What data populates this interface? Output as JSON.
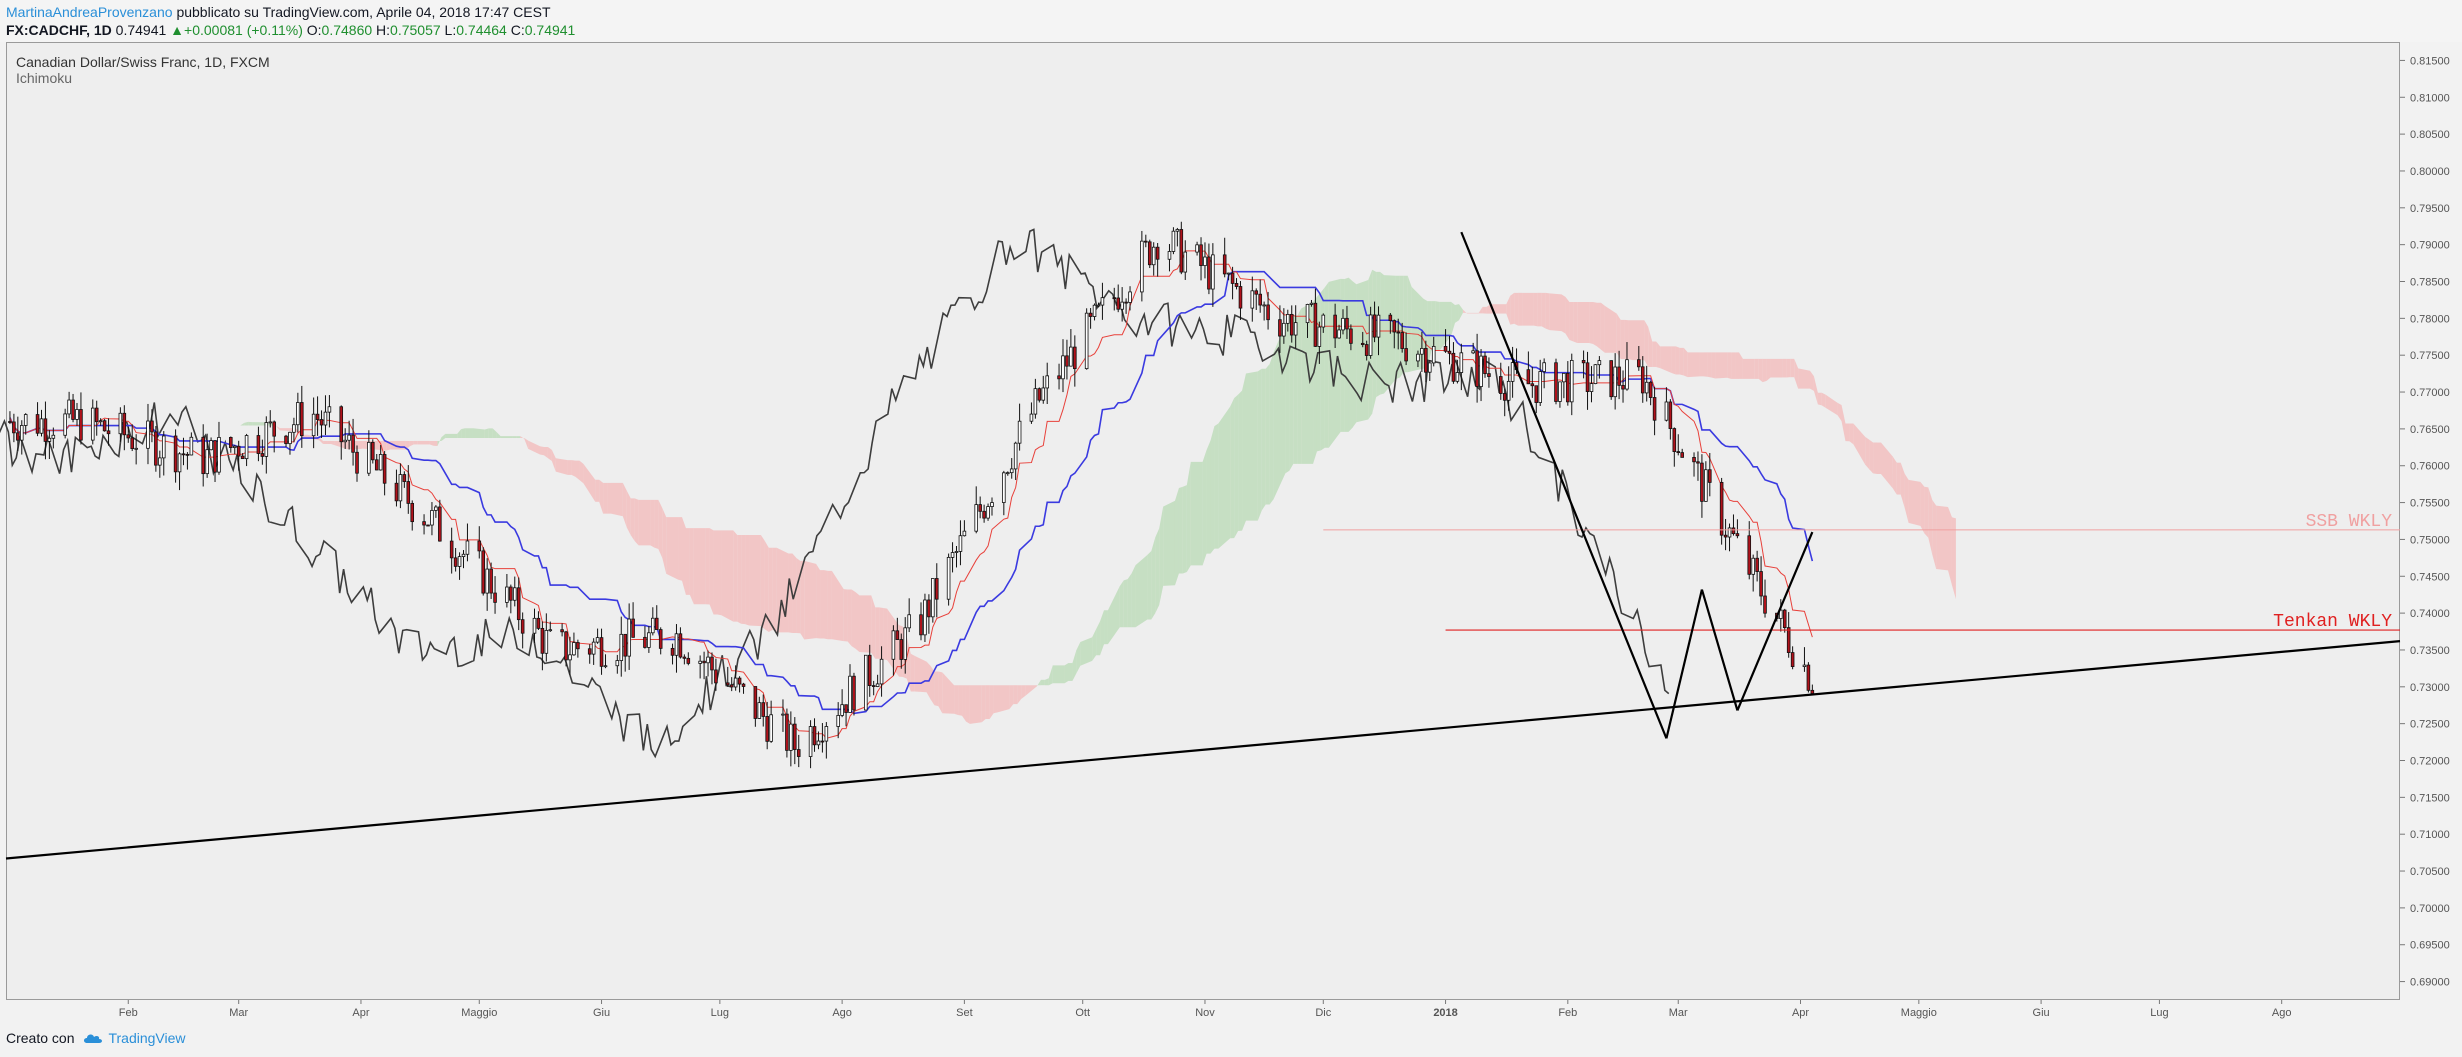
{
  "header": {
    "author": "MartinaAndreaProvenzano",
    "published": "pubblicato su TradingView.com, Aprile 04, 2018 17:47 CEST",
    "symbol": "FX:CADCHF, 1D",
    "last": "0.74941",
    "change": "+0.00081 (+0.11%)",
    "o_label": "O:",
    "o_value": "0.74860",
    "h_label": "H:",
    "h_value": "0.75057",
    "l_label": "L:",
    "l_value": "0.74464",
    "c_label": "C:",
    "c_value": "0.74941"
  },
  "legend": {
    "title": "Canadian Dollar/Swiss Franc, 1D, FXCM",
    "indicator": "Ichimoku"
  },
  "footer": {
    "created_with": "Creato con",
    "brand": "TradingView",
    "brand_icon": "tradingview-cloud-icon"
  },
  "colors": {
    "tenkan": "#e8403a",
    "kijun": "#3a3ae0",
    "chikou": "#3d3d3d",
    "bull_cloud": "#b8dab4",
    "bear_cloud": "#f3b8b8",
    "bull_candle": "#ffffff",
    "bear_candle": "#b0121b",
    "trendline": "#000000",
    "ssb_line": "#f0a0a0",
    "tenkan_line": "#e02020"
  },
  "chart_data": {
    "type": "candlestick",
    "symbol": "CADCHF",
    "x_ticks": [
      "Feb",
      "Mar",
      "Apr",
      "Maggio",
      "Giu",
      "Lug",
      "Ago",
      "Set",
      "Ott",
      "Nov",
      "Dic",
      "2018",
      "Feb",
      "Mar",
      "Apr",
      "Maggio",
      "Giu",
      "Lug",
      "Ago"
    ],
    "y_ticks": [
      "0.81500",
      "0.81000",
      "0.80500",
      "0.80000",
      "0.79500",
      "0.79000",
      "0.78500",
      "0.78000",
      "0.77500",
      "0.77000",
      "0.76500",
      "0.76000",
      "0.75500",
      "0.75000",
      "0.74500",
      "0.74000",
      "0.73500",
      "0.73000",
      "0.72500",
      "0.72000",
      "0.71500",
      "0.71000",
      "0.70500",
      "0.70000",
      "0.69500",
      "0.69000"
    ],
    "ylim": [
      0.6875,
      0.8175
    ],
    "x_dates": [
      "2017-01-20",
      "2017-02-20",
      "2017-03-20",
      "2017-04-20",
      "2017-05-20",
      "2017-06-20",
      "2017-07-20",
      "2017-08-20",
      "2017-09-20",
      "2017-10-20",
      "2017-11-20",
      "2017-12-20",
      "2018-01-20",
      "2018-02-20",
      "2018-03-20",
      "2018-04-05",
      "2018-05-10"
    ],
    "close_approx": [
      0.766,
      0.761,
      0.767,
      0.752,
      0.735,
      0.737,
      0.722,
      0.738,
      0.769,
      0.791,
      0.78,
      0.777,
      0.771,
      0.772,
      0.745,
      0.73,
      0.749
    ],
    "annotations": [
      {
        "text": "SSB WKLY",
        "y": 0.7513
      },
      {
        "text": "Tenkan WKLY",
        "y": 0.7377
      }
    ],
    "trendlines": [
      {
        "from": [
          "2017-01-01",
          0.7067
        ],
        "to": [
          "2018-08-31",
          0.7362
        ]
      },
      {
        "from": [
          "2018-01-05",
          0.7917
        ],
        "to": [
          "2018-02-26",
          0.723
        ]
      },
      {
        "from": [
          "2018-02-26",
          0.723
        ],
        "to": [
          "2018-03-07",
          0.7432
        ]
      },
      {
        "from": [
          "2018-03-07",
          0.7432
        ],
        "to": [
          "2018-03-16",
          0.7268
        ]
      },
      {
        "from": [
          "2018-03-16",
          0.7268
        ],
        "to": [
          "2018-04-04",
          0.751
        ]
      }
    ]
  }
}
